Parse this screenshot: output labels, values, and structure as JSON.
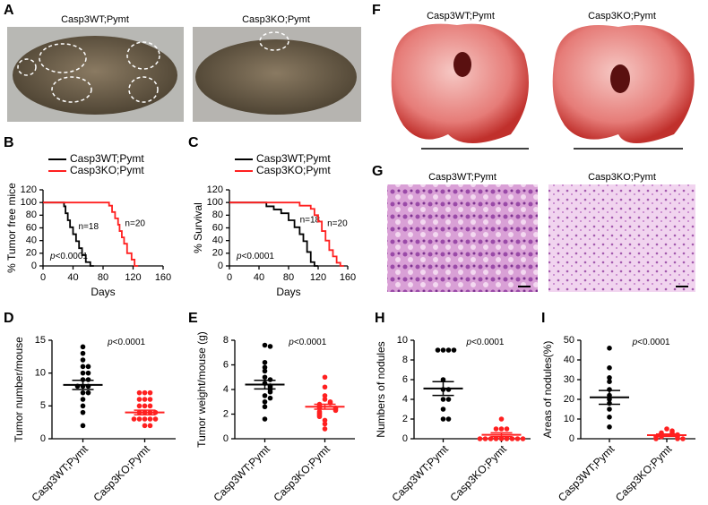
{
  "photo_panels": [
    {
      "letter": "A",
      "labels": [
        "Casp3WT;Pymt",
        "Casp3KO;Pymt"
      ]
    },
    {
      "letter": "F",
      "labels": [
        "Casp3WT;Pymt",
        "Casp3KO;Pymt"
      ]
    },
    {
      "letter": "G",
      "labels": [
        "Casp3WT;Pymt",
        "Casp3KO;Pymt"
      ]
    }
  ],
  "chart_data": [
    {
      "type": "step",
      "letter": "B",
      "ylabel": "% Tumor free mice",
      "xlabel": "Days",
      "xlim": [
        0,
        160
      ],
      "xticks": [
        0,
        40,
        80,
        120,
        160
      ],
      "ylim": [
        0,
        120
      ],
      "yticks": [
        0,
        20,
        40,
        60,
        80,
        100,
        120
      ],
      "p_symbol": "p",
      "p_value": "<0.0001",
      "series": [
        {
          "name": "Casp3WT;Pymt",
          "color": "#000000",
          "n_label": "n=18",
          "x": [
            0,
            28,
            30,
            33,
            36,
            40,
            44,
            48,
            52,
            57,
            63
          ],
          "values": [
            100,
            94,
            83,
            72,
            61,
            50,
            39,
            28,
            17,
            6,
            0
          ]
        },
        {
          "name": "Casp3KO;Pymt",
          "color": "#ff2020",
          "n_label": "n=20",
          "x": [
            0,
            88,
            92,
            96,
            100,
            102,
            105,
            108,
            112,
            118,
            122
          ],
          "values": [
            100,
            95,
            85,
            75,
            65,
            55,
            45,
            35,
            20,
            10,
            0
          ]
        }
      ]
    },
    {
      "type": "step",
      "letter": "C",
      "ylabel": "% Survival",
      "xlabel": "Days",
      "xlim": [
        0,
        160
      ],
      "xticks": [
        0,
        40,
        80,
        120,
        160
      ],
      "ylim": [
        0,
        120
      ],
      "yticks": [
        0,
        20,
        40,
        60,
        80,
        100,
        120
      ],
      "p_symbol": "p",
      "p_value": "<0.0001",
      "series": [
        {
          "name": "Casp3WT;Pymt",
          "color": "#000000",
          "n_label": "n=18",
          "x": [
            0,
            50,
            60,
            70,
            80,
            88,
            95,
            100,
            105,
            110,
            115
          ],
          "values": [
            100,
            94,
            89,
            83,
            72,
            61,
            50,
            39,
            22,
            6,
            0
          ]
        },
        {
          "name": "Casp3KO;Pymt",
          "color": "#ff2020",
          "n_label": "n=20",
          "x": [
            0,
            95,
            110,
            115,
            120,
            125,
            130,
            135,
            140,
            145,
            150
          ],
          "values": [
            100,
            95,
            90,
            80,
            70,
            55,
            40,
            25,
            15,
            5,
            0
          ]
        }
      ]
    },
    {
      "type": "dot",
      "letter": "D",
      "ylabel": "Tumor number/mouse",
      "ylim": [
        0,
        15
      ],
      "yticks": [
        0,
        5,
        10,
        15
      ],
      "p_symbol": "p",
      "p_value": "<0.0001",
      "categories": [
        "Casp3WT;Pymt",
        "Casp3KO;Pymt"
      ],
      "groups": [
        {
          "color": "#000000",
          "values": [
            14,
            13,
            12,
            11,
            11,
            10,
            10,
            9,
            9,
            8,
            8,
            8,
            7,
            7,
            6,
            5,
            4,
            2
          ],
          "mean": 8.2,
          "sem": 0.7
        },
        {
          "color": "#ff2020",
          "values": [
            7,
            7,
            7,
            6,
            6,
            6,
            5,
            5,
            5,
            4,
            4,
            4,
            4,
            3,
            3,
            3,
            3,
            3,
            2,
            2
          ],
          "mean": 4,
          "sem": 0.35
        }
      ]
    },
    {
      "type": "dot",
      "letter": "E",
      "ylabel": "Tumor weight/mouse (g)",
      "ylim": [
        0,
        8
      ],
      "yticks": [
        0,
        2,
        4,
        6,
        8
      ],
      "p_symbol": "p",
      "p_value": "<0.0001",
      "categories": [
        "Casp3WT;Pymt",
        "Casp3KO;Pymt"
      ],
      "groups": [
        {
          "color": "#000000",
          "values": [
            7.6,
            7.5,
            6.2,
            5.8,
            5.5,
            5.0,
            4.8,
            4.5,
            4.3,
            4.2,
            4.0,
            3.8,
            3.5,
            3.3,
            3.0,
            2.6,
            1.6
          ],
          "mean": 4.4,
          "sem": 0.35
        },
        {
          "color": "#ff2020",
          "values": [
            5.0,
            4.2,
            3.5,
            3.2,
            3.0,
            2.9,
            2.8,
            2.7,
            2.6,
            2.5,
            2.5,
            2.4,
            2.3,
            2.2,
            2.1,
            2.0,
            1.9,
            1.8,
            1.5,
            1.2,
            0.8
          ],
          "mean": 2.6,
          "sem": 0.2
        }
      ]
    },
    {
      "type": "dot",
      "letter": "H",
      "ylabel": "Numbers of nodules",
      "ylim": [
        0,
        10
      ],
      "yticks": [
        0,
        2,
        4,
        6,
        8,
        10
      ],
      "p_symbol": "p",
      "p_value": "<0.0001",
      "categories": [
        "Casp3WT;Pymt",
        "Casp3KO;Pymt"
      ],
      "groups": [
        {
          "color": "#000000",
          "values": [
            9,
            9,
            9,
            9,
            6,
            5,
            5,
            4,
            4,
            3,
            2,
            2
          ],
          "mean": 5.1,
          "sem": 0.7
        },
        {
          "color": "#ff2020",
          "values": [
            2,
            1,
            1,
            1,
            0,
            0,
            0,
            0,
            0,
            0,
            0,
            0,
            0
          ],
          "mean": 0.4,
          "sem": 0.2
        }
      ]
    },
    {
      "type": "dot",
      "letter": "I",
      "ylabel": "Areas of nodules(%)",
      "ylim": [
        0,
        50
      ],
      "yticks": [
        0,
        10,
        20,
        30,
        40,
        50
      ],
      "p_symbol": "p",
      "p_value": "<0.0001",
      "categories": [
        "Casp3WT;Pymt",
        "Casp3KO;Pymt"
      ],
      "groups": [
        {
          "color": "#000000",
          "values": [
            46,
            36,
            31,
            29,
            25,
            22,
            20,
            18,
            15,
            11,
            6
          ],
          "mean": 21,
          "sem": 3.5
        },
        {
          "color": "#ff2020",
          "values": [
            5,
            4,
            3,
            3,
            2,
            2,
            1,
            1,
            1,
            0,
            0,
            0
          ],
          "mean": 1.8,
          "sem": 0.6
        }
      ]
    }
  ]
}
